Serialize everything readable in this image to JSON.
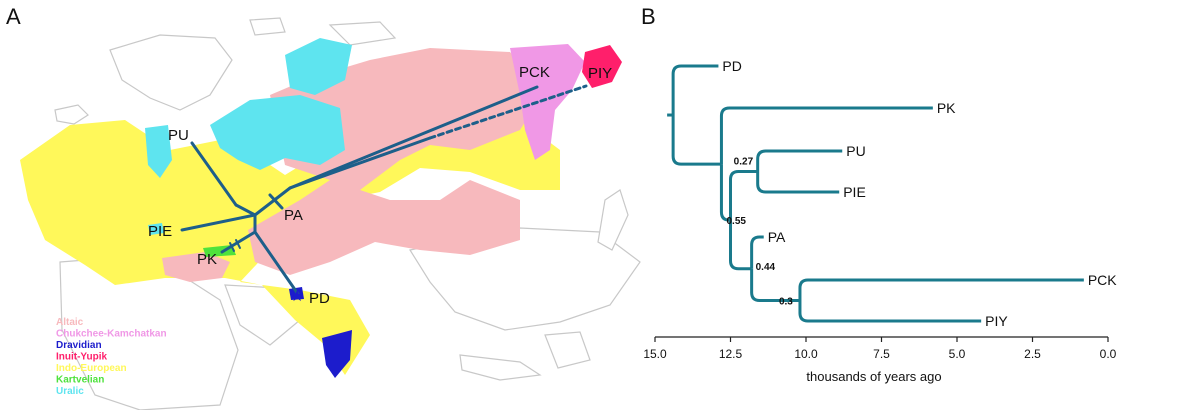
{
  "panels": {
    "a": {
      "letter": "A"
    },
    "b": {
      "letter": "B"
    }
  },
  "map": {
    "nodes": {
      "pu": "PU",
      "pie": "PIE",
      "pk": "PK",
      "pa": "PA",
      "pd": "PD",
      "pck": "PCK",
      "piy": "PIY"
    },
    "legend": [
      {
        "label": "Altaic",
        "color": "#f7b9bd"
      },
      {
        "label": "Chukchee-Kamchatkan",
        "color": "#f098e6"
      },
      {
        "label": "Dravidian",
        "color": "#1c1ccc"
      },
      {
        "label": "Inuit-Yupik",
        "color": "#ff1f6b"
      },
      {
        "label": "Indo-European",
        "color": "#fff85a"
      },
      {
        "label": "Kartvelian",
        "color": "#4ee23c"
      },
      {
        "label": "Uralic",
        "color": "#5ee4ef"
      }
    ],
    "colors": {
      "route": "#1d5f8a",
      "land_outline": "#c8c8c8",
      "neutral_land": "#ffffff"
    }
  },
  "chart_data": {
    "type": "tree",
    "xlabel": "thousands of years ago",
    "xlim": [
      15.0,
      0.0
    ],
    "ticks": [
      "15.0",
      "12.5",
      "10.0",
      "7.5",
      "5.0",
      "2.5",
      "0.0"
    ],
    "tree_color": "#1a7a8c",
    "leaves": [
      {
        "name": "PD",
        "age": 12.9
      },
      {
        "name": "PK",
        "age": 5.8
      },
      {
        "name": "PU",
        "age": 8.8
      },
      {
        "name": "PIE",
        "age": 8.9
      },
      {
        "name": "PA",
        "age": 11.4
      },
      {
        "name": "PCK",
        "age": 0.8
      },
      {
        "name": "PIY",
        "age": 4.2
      }
    ],
    "support_values": [
      {
        "clade": "PU+PIE",
        "value": "0.27"
      },
      {
        "clade": "PU+PIE+PA+PCK+PIY",
        "value": "0.55"
      },
      {
        "clade": "PA+PCK+PIY",
        "value": "0.44"
      },
      {
        "clade": "PCK+PIY",
        "value": "0.3"
      }
    ]
  }
}
